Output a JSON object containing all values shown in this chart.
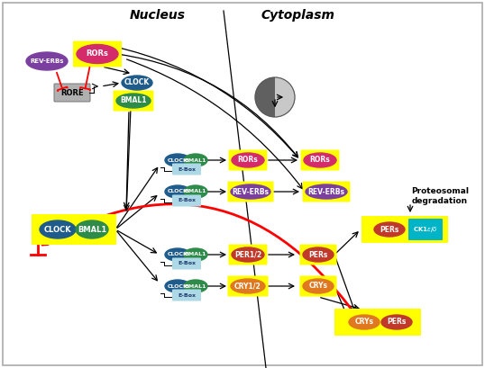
{
  "bg_color": "#ffffff",
  "nucleus_label": "Nucleus",
  "cytoplasm_label": "Cytoplasm",
  "proteosomal_label": "Proteosomal\ndegradation"
}
